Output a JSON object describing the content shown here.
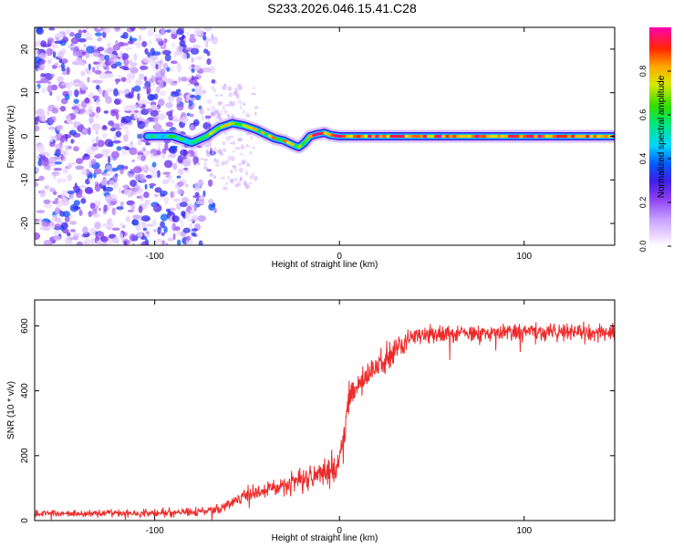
{
  "title": "S233.2026.046.15.41.C28",
  "colors": {
    "snr_line": "#ee2b2b",
    "scatter": "#8a4bf0",
    "frame": "#000000"
  },
  "chart_data": [
    {
      "type": "heatmap",
      "name": "spectrogram",
      "xlabel": "Height of straight line (km)",
      "ylabel": "Frequency (Hz)",
      "xlim": [
        -165,
        149
      ],
      "ylim": [
        -25,
        25
      ],
      "xticks": [
        -100,
        0,
        100
      ],
      "xtick_labels": [
        "-100",
        "0",
        "100"
      ],
      "yticks": [
        20,
        10,
        0,
        -10,
        -20
      ],
      "ytick_labels": [
        "20",
        "10",
        "0",
        "-10",
        "-20"
      ],
      "colorbar": {
        "label": "Normalized spectral amplitude",
        "range": [
          0,
          1
        ],
        "ticks": [
          0.0,
          0.2,
          0.4,
          0.6,
          0.8
        ],
        "tick_labels": [
          "0.0",
          "0.2",
          "0.4",
          "0.6",
          "0.8"
        ]
      },
      "noise_region_x": [
        -165,
        -75
      ],
      "carrier_track": {
        "x": [
          -104,
          -90,
          -80,
          -72,
          -65,
          -58,
          -52,
          -45,
          -40,
          -35,
          -30,
          -25,
          -22,
          -19,
          -16,
          -12,
          -8,
          -5,
          0,
          20,
          60,
          100,
          149
        ],
        "y": [
          0,
          0,
          -1.5,
          0,
          2,
          3,
          2.5,
          1.5,
          0.5,
          -0.5,
          -1,
          -2,
          -2.5,
          -1.5,
          0,
          0.5,
          0.8,
          0.3,
          0,
          0,
          0,
          0,
          0
        ]
      }
    },
    {
      "type": "line",
      "name": "snr",
      "xlabel": "Height of straight line (km)",
      "ylabel": "SNR (10 * v/v)",
      "xlim": [
        -165,
        149
      ],
      "ylim": [
        0,
        680
      ],
      "xticks": [
        -100,
        0,
        100
      ],
      "xtick_labels": [
        "-100",
        "0",
        "100"
      ],
      "yticks": [
        0,
        200,
        400,
        600
      ],
      "ytick_labels": [
        "0",
        "200",
        "400",
        "600"
      ],
      "trend": {
        "x": [
          -165,
          -130,
          -80,
          -65,
          -50,
          -30,
          -10,
          -2,
          2,
          5,
          10,
          20,
          30,
          40,
          60,
          100,
          149
        ],
        "y": [
          22,
          22,
          25,
          35,
          80,
          110,
          150,
          165,
          240,
          360,
          410,
          470,
          530,
          570,
          575,
          580,
          580
        ]
      },
      "noise_amplitude": {
        "x": [
          -165,
          -70,
          -40,
          0,
          20,
          40,
          149
        ],
        "y": [
          12,
          18,
          35,
          60,
          70,
          35,
          35
        ]
      }
    }
  ]
}
